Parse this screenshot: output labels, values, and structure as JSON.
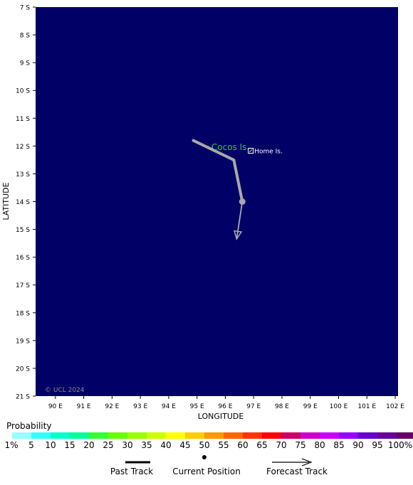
{
  "map": {
    "ocean_color": "#000066",
    "lat_ticks": [
      "7 S",
      "8 S",
      "9 S",
      "10 S",
      "11 S",
      "12 S",
      "13 S",
      "14 S",
      "15 S",
      "16 S",
      "17 S",
      "18 S",
      "19 S",
      "20 S",
      "21 S"
    ],
    "lon_ticks": [
      "90 E",
      "91 E",
      "92 E",
      "93 E",
      "94 E",
      "95 E",
      "96 E",
      "97 E",
      "98 E",
      "99 E",
      "100 E",
      "101 E",
      "102 E"
    ],
    "ylabel": "LATITUDE",
    "xlabel": "LONGITUDE",
    "copyright": "© UCL 2024",
    "places": [
      {
        "name": "Cocos Is.",
        "lon": 96.85,
        "lat": -12.15,
        "color": "#33cc33"
      },
      {
        "name": "Home Is.",
        "lon": 96.9,
        "lat": -12.17,
        "color": "#ffffff"
      }
    ],
    "track": {
      "past": [
        [
          94.87,
          -11.8
        ],
        [
          96.3,
          -12.5
        ],
        [
          96.6,
          -14.0
        ]
      ],
      "current": [
        96.6,
        -14.0
      ],
      "forecast": [
        [
          96.6,
          -14.0
        ],
        [
          96.4,
          -15.35
        ]
      ],
      "color": "#a8a8a8"
    }
  },
  "legend": {
    "title": "Probability",
    "labels": [
      "1%",
      "5",
      "10",
      "15",
      "20",
      "25",
      "30",
      "35",
      "40",
      "45",
      "50",
      "55",
      "60",
      "65",
      "70",
      "75",
      "80",
      "85",
      "90",
      "95",
      "100%"
    ],
    "colors": [
      "#99ffff",
      "#33ffff",
      "#00ffcc",
      "#00ff99",
      "#33ff33",
      "#66ff00",
      "#99ff00",
      "#ccff00",
      "#ffff00",
      "#ffcc00",
      "#ff9900",
      "#ff6600",
      "#ff3300",
      "#ff0000",
      "#cc0066",
      "#cc00cc",
      "#cc00ff",
      "#9900ff",
      "#6600cc",
      "#660099",
      "#660066"
    ],
    "past_track_label": "Past Track",
    "current_position_label": "Current Position",
    "forecast_track_label": "Forecast Track"
  }
}
